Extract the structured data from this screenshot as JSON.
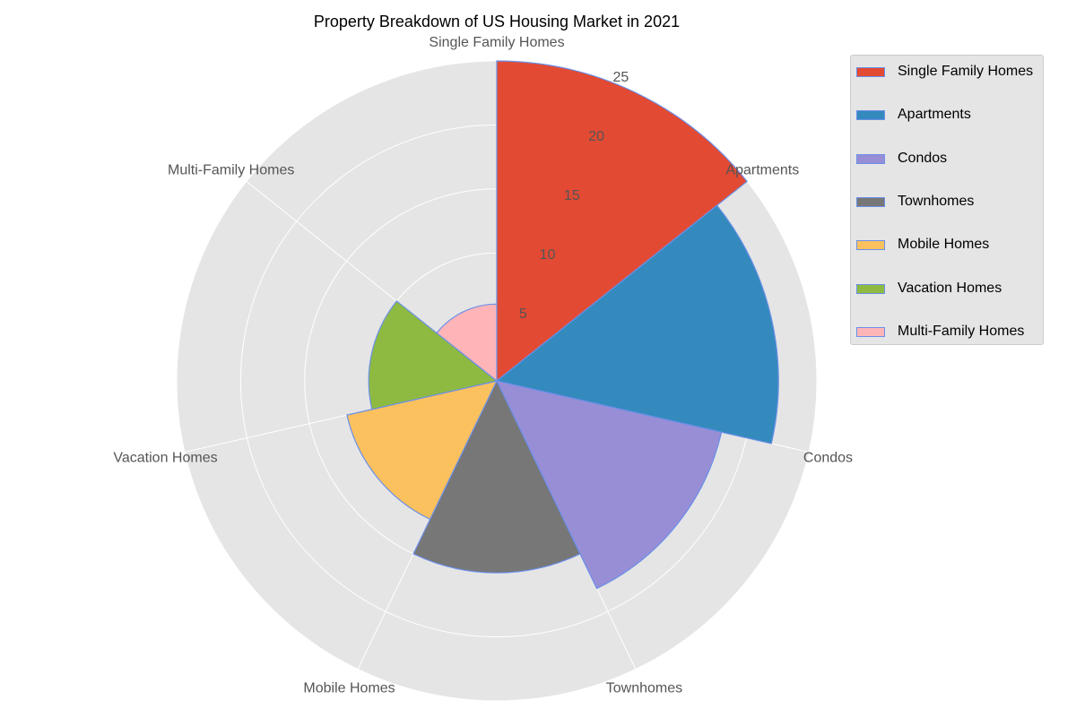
{
  "chart_data": {
    "type": "polar-bar",
    "title": "Property Breakdown of US Housing Market in 2021",
    "categories": [
      "Single Family Homes",
      "Apartments",
      "Condos",
      "Townhomes",
      "Mobile Homes",
      "Vacation Homes",
      "Multi-Family Homes"
    ],
    "values": [
      25,
      22,
      18,
      15,
      12,
      10,
      6
    ],
    "colors": [
      "#E24A33",
      "#348ABD",
      "#988ED5",
      "#777777",
      "#FBC15E",
      "#8EBA42",
      "#FFB5B8"
    ],
    "edge_color": "#6a8fe8",
    "radial_ticks": [
      5,
      10,
      15,
      20,
      25
    ],
    "rlim": [
      0,
      25
    ],
    "grid": true,
    "legend_position": "top-right",
    "legend": [
      "Single Family Homes",
      "Apartments",
      "Condos",
      "Townhomes",
      "Mobile Homes",
      "Vacation Homes",
      "Multi-Family Homes"
    ]
  }
}
